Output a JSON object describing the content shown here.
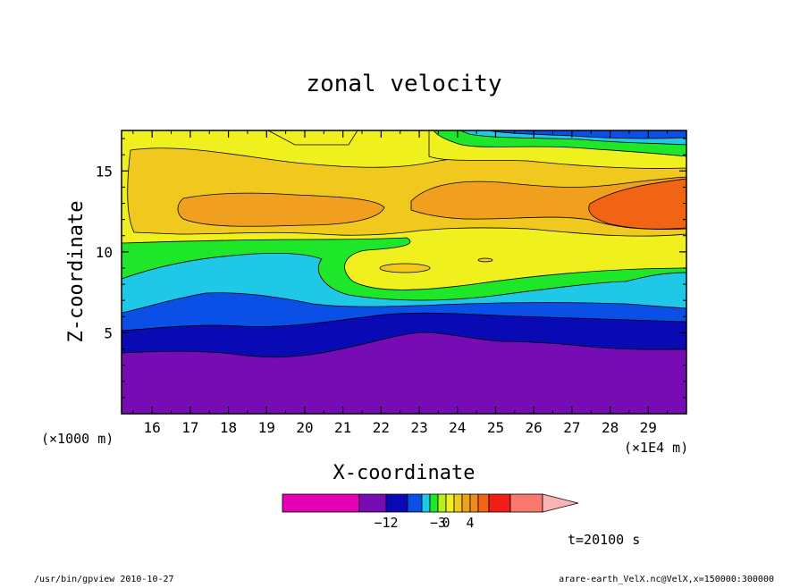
{
  "chart_data": {
    "type": "heatmap",
    "subtype": "filled-contour",
    "title": "zonal velocity",
    "xlabel": "X-coordinate",
    "ylabel": "Z-coordinate",
    "x_unit_left": "(×1000 m)",
    "x_unit_right": "(×1E4 m)",
    "xlim": [
      15.2,
      30
    ],
    "ylim": [
      0,
      17.5
    ],
    "x_ticks": [
      16,
      17,
      18,
      19,
      20,
      21,
      22,
      23,
      24,
      25,
      26,
      27,
      28,
      29
    ],
    "y_ticks": [
      5,
      10,
      15
    ],
    "time_label": "t=20100 s",
    "colorbar": {
      "colors": [
        "#e600b4",
        "#780cb4",
        "#0a0ab4",
        "#0a50e6",
        "#1ec8e6",
        "#1ee628",
        "#b4f01e",
        "#f0f01e",
        "#f0c81e",
        "#f0a01e",
        "#f08c1e",
        "#f06414",
        "#f01e14",
        "#fa786e",
        "#fab4b4"
      ],
      "labels": [
        {
          "text": "−12",
          "after": 1
        },
        {
          "text": "−3",
          "after": 5
        },
        {
          "text": "0",
          "after": 6
        },
        {
          "text": "4",
          "after": 9
        }
      ]
    },
    "z_levels_approx": [
      {
        "layer": "bottom",
        "z_top": 4,
        "color": "purple"
      },
      {
        "layer": "dark-blue",
        "z_top": 5.5,
        "color": "navy"
      },
      {
        "layer": "blue",
        "z_top": 6.5,
        "color": "blue"
      },
      {
        "layer": "cyan",
        "z_top": 8.5,
        "color": "cyan"
      },
      {
        "layer": "green",
        "z_top": 10.5,
        "color": "green"
      },
      {
        "layer": "yellow/orange",
        "z_top": 17.5,
        "color": "yellow-orange"
      }
    ]
  },
  "footer": {
    "left": "/usr/bin/gpview  2010-10-27",
    "right": "arare-earth_VelX.nc@VelX,x=150000:300000"
  }
}
